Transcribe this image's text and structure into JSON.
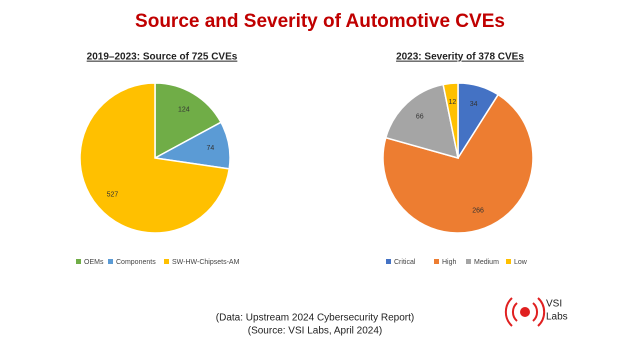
{
  "title": "Source and Severity of Automotive CVEs",
  "chart_data": [
    {
      "type": "pie",
      "title": "2019–2023: Source of 725 CVEs",
      "categories": [
        "OEMs",
        "Components",
        "SW-HW-Chipsets-AM"
      ],
      "values": [
        124,
        74,
        527
      ],
      "colors": [
        "#70ad47",
        "#5b9bd5",
        "#ffc000"
      ]
    },
    {
      "type": "pie",
      "title": "2023: Severity of 378 CVEs",
      "categories": [
        "Critical",
        "High",
        "Medium",
        "Low"
      ],
      "values": [
        34,
        266,
        66,
        12
      ],
      "colors": [
        "#4472c4",
        "#ed7d31",
        "#a5a5a5",
        "#ffc000"
      ]
    }
  ],
  "footer": [
    "(Data: Upstream 2024 Cybersecurity Report)",
    "(Source: VSI Labs, April 2024)"
  ],
  "logo": [
    "VSI",
    "Labs"
  ]
}
